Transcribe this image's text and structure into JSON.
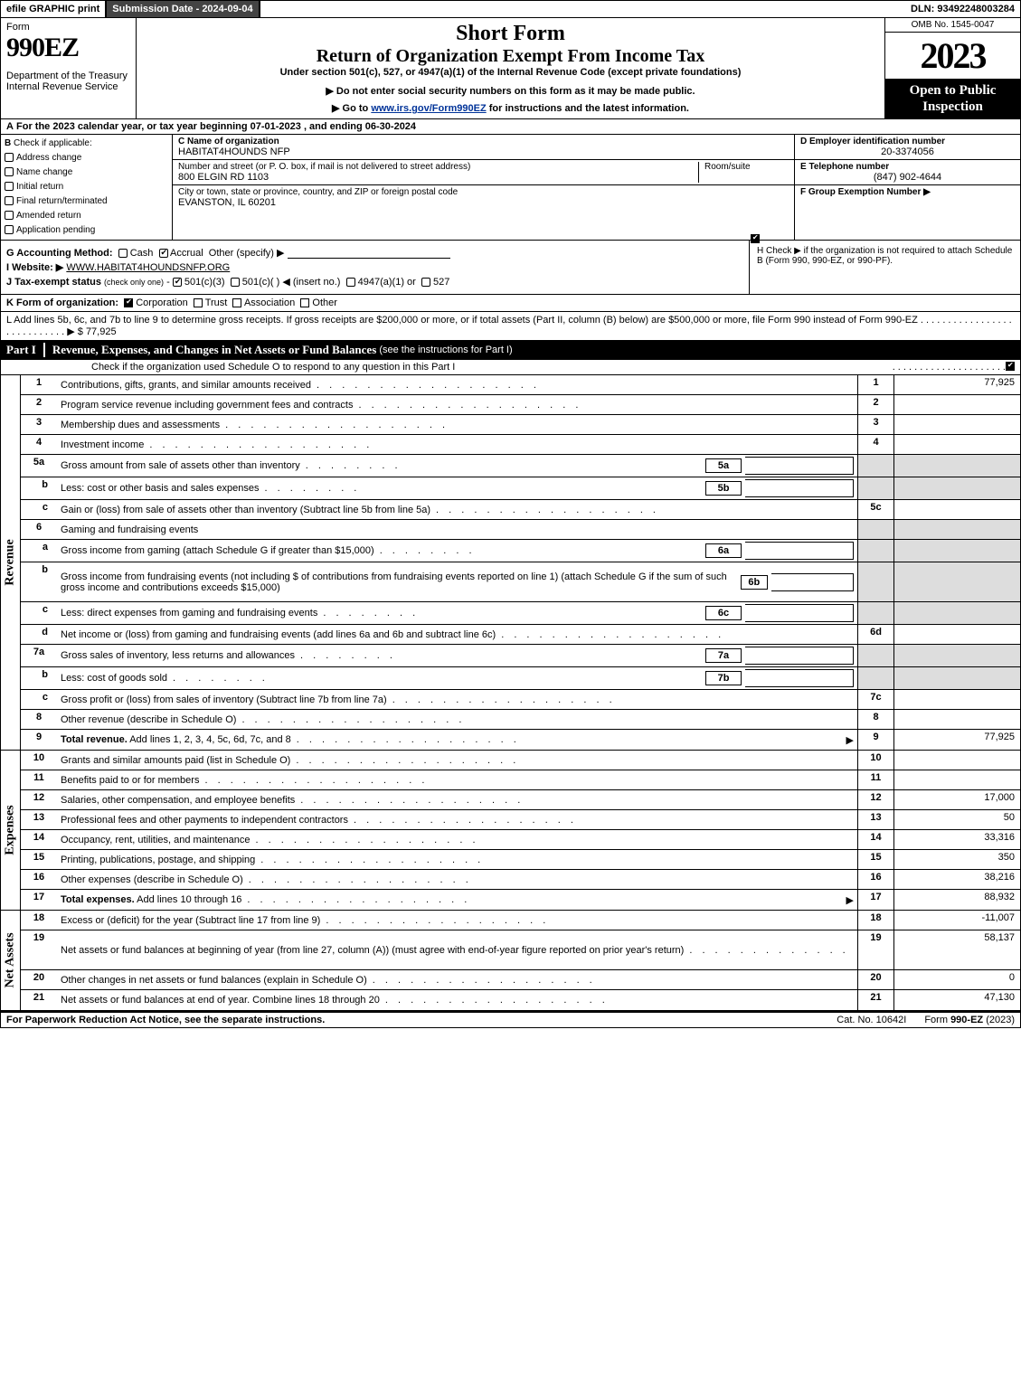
{
  "top": {
    "efile": "efile GRAPHIC print",
    "submission": "Submission Date - 2024-09-04",
    "dln": "DLN: 93492248003284"
  },
  "header": {
    "form_word": "Form",
    "form_num": "990EZ",
    "dept": "Department of the Treasury\nInternal Revenue Service",
    "title1": "Short Form",
    "title2": "Return of Organization Exempt From Income Tax",
    "sub1": "Under section 501(c), 527, or 4947(a)(1) of the Internal Revenue Code (except private foundations)",
    "sub2": "▶ Do not enter social security numbers on this form as it may be made public.",
    "sub3_pre": "▶ Go to ",
    "sub3_link": "www.irs.gov/Form990EZ",
    "sub3_post": " for instructions and the latest information.",
    "omb": "OMB No. 1545-0047",
    "year": "2023",
    "open": "Open to Public Inspection"
  },
  "rowA": {
    "label": "A",
    "text": "For the 2023 calendar year, or tax year beginning 07-01-2023 , and ending 06-30-2024"
  },
  "colB": {
    "label": "B",
    "lead": "Check if applicable:",
    "items": [
      "Address change",
      "Name change",
      "Initial return",
      "Final return/terminated",
      "Amended return",
      "Application pending"
    ]
  },
  "colC": {
    "name_lbl": "C Name of organization",
    "name_val": "HABITAT4HOUNDS NFP",
    "addr_lbl": "Number and street (or P. O. box, if mail is not delivered to street address)",
    "addr_val": "800 ELGIN RD 1103",
    "room_lbl": "Room/suite",
    "city_lbl": "City or town, state or province, country, and ZIP or foreign postal code",
    "city_val": "EVANSTON, IL  60201"
  },
  "colD": {
    "ein_lbl": "D Employer identification number",
    "ein_val": "20-3374056",
    "tel_lbl": "E Telephone number",
    "tel_val": "(847) 902-4644",
    "grp_lbl": "F Group Exemption Number  ▶"
  },
  "rowG": {
    "acct_lbl": "G Accounting Method:",
    "acct_cash": "Cash",
    "acct_accr": "Accrual",
    "acct_other": "Other (specify) ▶",
    "web_lbl": "I Website: ▶",
    "web_val": "WWW.HABITAT4HOUNDSNFP.ORG",
    "tax_lbl": "J Tax-exempt status",
    "tax_sub": "(check only one)",
    "tax_501c3": "501(c)(3)",
    "tax_501c": "501(c)(  ) ◀ (insert no.)",
    "tax_4947": "4947(a)(1) or",
    "tax_527": "527"
  },
  "rowH": {
    "text": "H  Check ▶      if the organization is not required to attach Schedule B (Form 990, 990-EZ, or 990-PF)."
  },
  "rowK": {
    "lbl": "K Form of organization:",
    "corp": "Corporation",
    "trust": "Trust",
    "assoc": "Association",
    "other": "Other"
  },
  "rowL": {
    "text": "L Add lines 5b, 6c, and 7b to line 9 to determine gross receipts. If gross receipts are $200,000 or more, or if total assets (Part II, column (B) below) are $500,000 or more, file Form 990 instead of Form 990-EZ",
    "amt": "▶ $ 77,925"
  },
  "part1": {
    "label": "Part I",
    "title": "Revenue, Expenses, and Changes in Net Assets or Fund Balances",
    "sub": "(see the instructions for Part I)",
    "check_text": "Check if the organization used Schedule O to respond to any question in this Part I"
  },
  "sections": {
    "revenue_label": "Revenue",
    "expenses_label": "Expenses",
    "netassets_label": "Net Assets"
  },
  "lines": [
    {
      "n": "1",
      "t": "Contributions, gifts, grants, and similar amounts received",
      "ref": "1",
      "amt": "77,925"
    },
    {
      "n": "2",
      "t": "Program service revenue including government fees and contracts",
      "ref": "2",
      "amt": ""
    },
    {
      "n": "3",
      "t": "Membership dues and assessments",
      "ref": "3",
      "amt": ""
    },
    {
      "n": "4",
      "t": "Investment income",
      "ref": "4",
      "amt": ""
    },
    {
      "n": "5a",
      "t": "Gross amount from sale of assets other than inventory",
      "mini": "5a",
      "grey": true
    },
    {
      "n": "b",
      "t": "Less: cost or other basis and sales expenses",
      "mini": "5b",
      "grey": true
    },
    {
      "n": "c",
      "t": "Gain or (loss) from sale of assets other than inventory (Subtract line 5b from line 5a)",
      "ref": "5c",
      "amt": ""
    },
    {
      "n": "6",
      "t": "Gaming and fundraising events",
      "noref": true,
      "grey": true
    },
    {
      "n": "a",
      "t": "Gross income from gaming (attach Schedule G if greater than $15,000)",
      "mini": "6a",
      "grey": true
    },
    {
      "n": "b",
      "t": "Gross income from fundraising events (not including $                       of contributions from fundraising events reported on line 1) (attach Schedule G if the sum of such gross income and contributions exceeds $15,000)",
      "mini": "6b",
      "grey": true,
      "tall": true
    },
    {
      "n": "c",
      "t": "Less: direct expenses from gaming and fundraising events",
      "mini": "6c",
      "grey": true
    },
    {
      "n": "d",
      "t": "Net income or (loss) from gaming and fundraising events (add lines 6a and 6b and subtract line 6c)",
      "ref": "6d",
      "amt": ""
    },
    {
      "n": "7a",
      "t": "Gross sales of inventory, less returns and allowances",
      "mini": "7a",
      "grey": true
    },
    {
      "n": "b",
      "t": "Less: cost of goods sold",
      "mini": "7b",
      "grey": true
    },
    {
      "n": "c",
      "t": "Gross profit or (loss) from sales of inventory (Subtract line 7b from line 7a)",
      "ref": "7c",
      "amt": ""
    },
    {
      "n": "8",
      "t": "Other revenue (describe in Schedule O)",
      "ref": "8",
      "amt": ""
    },
    {
      "n": "9",
      "t": "Total revenue. Add lines 1, 2, 3, 4, 5c, 6d, 7c, and 8",
      "ref": "9",
      "amt": "77,925",
      "bold": true,
      "arrow": true
    }
  ],
  "exp_lines": [
    {
      "n": "10",
      "t": "Grants and similar amounts paid (list in Schedule O)",
      "ref": "10",
      "amt": ""
    },
    {
      "n": "11",
      "t": "Benefits paid to or for members",
      "ref": "11",
      "amt": ""
    },
    {
      "n": "12",
      "t": "Salaries, other compensation, and employee benefits",
      "ref": "12",
      "amt": "17,000"
    },
    {
      "n": "13",
      "t": "Professional fees and other payments to independent contractors",
      "ref": "13",
      "amt": "50"
    },
    {
      "n": "14",
      "t": "Occupancy, rent, utilities, and maintenance",
      "ref": "14",
      "amt": "33,316"
    },
    {
      "n": "15",
      "t": "Printing, publications, postage, and shipping",
      "ref": "15",
      "amt": "350"
    },
    {
      "n": "16",
      "t": "Other expenses (describe in Schedule O)",
      "ref": "16",
      "amt": "38,216"
    },
    {
      "n": "17",
      "t": "Total expenses. Add lines 10 through 16",
      "ref": "17",
      "amt": "88,932",
      "bold": true,
      "arrow": true
    }
  ],
  "na_lines": [
    {
      "n": "18",
      "t": "Excess or (deficit) for the year (Subtract line 17 from line 9)",
      "ref": "18",
      "amt": "-11,007"
    },
    {
      "n": "19",
      "t": "Net assets or fund balances at beginning of year (from line 27, column (A)) (must agree with end-of-year figure reported on prior year's return)",
      "ref": "19",
      "amt": "58,137",
      "tall": true
    },
    {
      "n": "20",
      "t": "Other changes in net assets or fund balances (explain in Schedule O)",
      "ref": "20",
      "amt": "0"
    },
    {
      "n": "21",
      "t": "Net assets or fund balances at end of year. Combine lines 18 through 20",
      "ref": "21",
      "amt": "47,130"
    }
  ],
  "footer": {
    "left": "For Paperwork Reduction Act Notice, see the separate instructions.",
    "mid": "Cat. No. 10642I",
    "right_pre": "Form ",
    "right_bold": "990-EZ",
    "right_post": " (2023)"
  },
  "style": {
    "bg": "#ffffff",
    "ink": "#000000",
    "grey": "#dddddd",
    "link": "#003399"
  }
}
